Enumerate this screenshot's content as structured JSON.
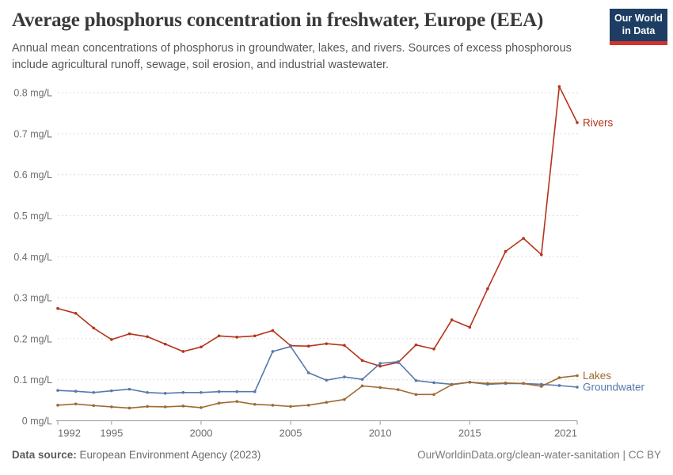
{
  "header": {
    "title": "Average phosphorus concentration in freshwater, Europe (EEA)",
    "subtitle": "Annual mean concentrations of phosphorus in groundwater, lakes, and rivers. Sources of excess phosphorous include agricultural runoff, sewage, soil erosion, and industrial wastewater."
  },
  "logo": {
    "line1": "Our World",
    "line2": "in Data"
  },
  "footer": {
    "source_label": "Data source:",
    "source_value": " European Environment Agency (2023)",
    "credit": "OurWorldinData.org/clean-water-sanitation | CC BY"
  },
  "chart_data": {
    "type": "line",
    "title": "Average phosphorus concentration in freshwater, Europe (EEA)",
    "xlabel": "",
    "ylabel": "mg/L",
    "unit_suffix": " mg/L",
    "grid": "horizontal-dashed",
    "legend_position": "end-of-line-labels",
    "ylim": [
      0,
      0.84
    ],
    "yticks": [
      0,
      0.1,
      0.2,
      0.3,
      0.4,
      0.5,
      0.6,
      0.7,
      0.8
    ],
    "xticks": [
      1992,
      1995,
      2000,
      2005,
      2010,
      2015,
      2021
    ],
    "x": [
      1992,
      1993,
      1994,
      1995,
      1996,
      1997,
      1998,
      1999,
      2000,
      2001,
      2002,
      2003,
      2004,
      2005,
      2006,
      2007,
      2008,
      2009,
      2010,
      2011,
      2012,
      2013,
      2014,
      2015,
      2016,
      2017,
      2018,
      2019,
      2020,
      2021
    ],
    "series": [
      {
        "name": "Rivers",
        "color": "#b5331a",
        "values": [
          0.274,
          0.262,
          0.226,
          0.198,
          0.212,
          0.205,
          0.187,
          0.169,
          0.18,
          0.207,
          0.204,
          0.207,
          0.22,
          0.183,
          0.182,
          0.188,
          0.184,
          0.147,
          0.133,
          0.142,
          0.185,
          0.175,
          0.246,
          0.228,
          0.322,
          0.413,
          0.445,
          0.405,
          0.815,
          0.727
        ]
      },
      {
        "name": "Groundwater",
        "color": "#5878ab",
        "values": [
          0.074,
          0.072,
          0.069,
          0.073,
          0.077,
          0.069,
          0.067,
          0.069,
          0.069,
          0.071,
          0.071,
          0.071,
          0.169,
          0.181,
          0.117,
          0.099,
          0.107,
          0.101,
          0.14,
          0.144,
          0.098,
          0.093,
          0.089,
          0.094,
          0.089,
          0.091,
          0.091,
          0.089,
          0.086,
          0.082
        ]
      },
      {
        "name": "Lakes",
        "color": "#9d6b33",
        "values": [
          0.038,
          0.041,
          0.037,
          0.034,
          0.031,
          0.035,
          0.034,
          0.036,
          0.032,
          0.043,
          0.047,
          0.04,
          0.038,
          0.035,
          0.038,
          0.045,
          0.052,
          0.085,
          0.081,
          0.076,
          0.064,
          0.064,
          0.088,
          0.094,
          0.091,
          0.092,
          0.091,
          0.084,
          0.105,
          0.11
        ]
      }
    ]
  }
}
